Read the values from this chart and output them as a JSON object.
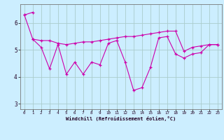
{
  "xlabel": "Windchill (Refroidissement éolien,°C)",
  "bg_color": "#cceeff",
  "line_color": "#cc00aa",
  "grid_color": "#aacccc",
  "xlim": [
    -0.5,
    23.5
  ],
  "ylim": [
    2.8,
    6.7
  ],
  "xticks": [
    0,
    1,
    2,
    3,
    4,
    5,
    6,
    7,
    8,
    9,
    10,
    11,
    12,
    13,
    14,
    15,
    16,
    17,
    18,
    19,
    20,
    21,
    22,
    23
  ],
  "yticks": [
    3,
    4,
    5,
    6
  ],
  "series1_x": [
    0,
    1
  ],
  "series1_y": [
    6.3,
    6.4
  ],
  "series2_x": [
    0,
    1,
    2,
    3,
    4,
    5,
    6,
    7,
    8,
    9,
    10,
    11,
    12,
    13,
    14,
    15,
    16,
    17,
    18,
    19,
    20,
    21,
    22,
    23
  ],
  "series2_y": [
    6.3,
    5.4,
    5.1,
    4.3,
    5.2,
    4.1,
    4.55,
    4.1,
    4.55,
    4.45,
    5.25,
    5.35,
    4.55,
    3.5,
    3.6,
    4.35,
    5.45,
    5.5,
    4.85,
    4.7,
    4.85,
    4.9,
    5.2,
    5.2
  ],
  "series3_x": [
    1,
    2,
    3,
    4,
    5,
    6,
    7,
    8,
    9,
    10,
    11,
    12,
    13,
    14,
    15,
    16,
    17,
    18,
    19,
    20,
    21,
    22,
    23
  ],
  "series3_y": [
    5.4,
    5.35,
    5.35,
    5.25,
    5.2,
    5.25,
    5.3,
    5.3,
    5.35,
    5.4,
    5.45,
    5.5,
    5.5,
    5.55,
    5.6,
    5.65,
    5.7,
    5.7,
    4.95,
    5.1,
    5.15,
    5.2,
    5.2
  ]
}
